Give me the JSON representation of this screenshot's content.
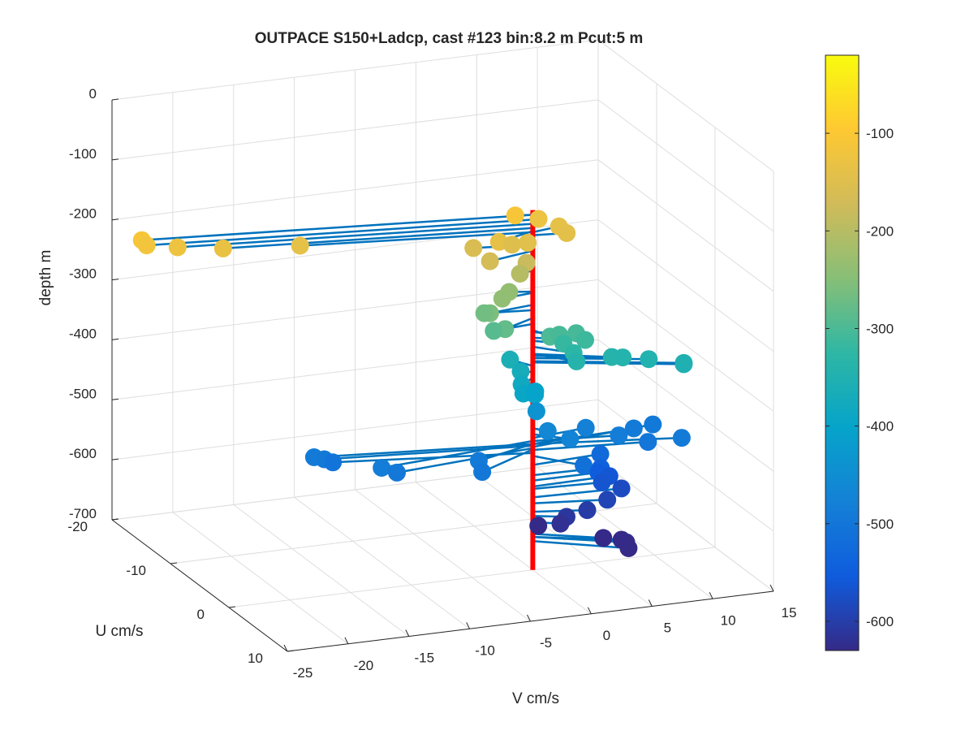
{
  "chart_data": {
    "type": "scatter",
    "title": "OUTPACE S150+Ladcp, cast #123 bin:8.2 m  Pcut:5 m",
    "zlabel": "depth m",
    "ulabel": "U cm/s",
    "vlabel": "V cm/s",
    "z_ticks": [
      "0",
      "-100",
      "-200",
      "-300",
      "-400",
      "-500",
      "-600",
      "-700"
    ],
    "u_ticks": [
      "-20",
      "-10",
      "0",
      "10"
    ],
    "v_ticks": [
      "-25",
      "-20",
      "-15",
      "-10",
      "-5",
      "0",
      "5",
      "10",
      "15"
    ],
    "colorbar_ticks": [
      "-100",
      "-200",
      "-300",
      "-400",
      "-500",
      "-600"
    ],
    "zlim": [
      -700,
      0
    ],
    "ulim": [
      -20,
      10
    ],
    "vlim": [
      -25,
      15
    ],
    "clim": [
      -630,
      -20
    ],
    "colormap": "parula",
    "grid": true,
    "axis_line_color": "#1f77b4",
    "series_color": "#0072BD",
    "profile_line_color": "#ff0000",
    "profile_depth_range": [
      -100,
      -700
    ],
    "points": [
      {
        "v": -30.0,
        "u": -4.5,
        "z": -108
      },
      {
        "v": -29.7,
        "u": -4.3,
        "z": -116
      },
      {
        "v": -27.3,
        "u": -4.0,
        "z": -123
      },
      {
        "v": -23.8,
        "u": -3.5,
        "z": -130
      },
      {
        "v": -17.7,
        "u": -3.0,
        "z": -137
      },
      {
        "v": -1.3,
        "u": -0.3,
        "z": -108
      },
      {
        "v": 1.1,
        "u": -1.3,
        "z": -127
      },
      {
        "v": -3.4,
        "u": 1.3,
        "z": -135
      },
      {
        "v": -0.9,
        "u": 1.0,
        "z": -145
      },
      {
        "v": -1.9,
        "u": 0.4,
        "z": -150
      },
      {
        "v": -4.5,
        "u": -0.8,
        "z": -158
      },
      {
        "v": -4.0,
        "u": 1.0,
        "z": -168
      },
      {
        "v": 2.4,
        "u": -0.5,
        "z": -137
      },
      {
        "v": 2.6,
        "u": 0.4,
        "z": -142
      },
      {
        "v": -0.9,
        "u": 0.8,
        "z": -180
      },
      {
        "v": -1.2,
        "u": 0.3,
        "z": -201
      },
      {
        "v": -1.7,
        "u": -0.5,
        "z": -236
      },
      {
        "v": -2.7,
        "u": 0.4,
        "z": -238
      },
      {
        "v": -3.8,
        "u": 0.6,
        "z": -258
      },
      {
        "v": -3.7,
        "u": -0.6,
        "z": -267
      },
      {
        "v": -3.0,
        "u": 1.5,
        "z": -280
      },
      {
        "v": -3.4,
        "u": 0.4,
        "z": -290
      },
      {
        "v": 0.6,
        "u": 1.7,
        "z": -300
      },
      {
        "v": 1.6,
        "u": 1.2,
        "z": -303
      },
      {
        "v": 3.0,
        "u": 1.2,
        "z": -304
      },
      {
        "v": 3.5,
        "u": 1.7,
        "z": -313
      },
      {
        "v": 1.9,
        "u": 1.3,
        "z": -318
      },
      {
        "v": 2.3,
        "u": 2.2,
        "z": -328
      },
      {
        "v": 2.4,
        "u": 2.5,
        "z": -340
      },
      {
        "v": 8.1,
        "u": 3.0,
        "z": -347
      },
      {
        "v": 5.3,
        "u": 2.5,
        "z": -340
      },
      {
        "v": 6.2,
        "u": 2.5,
        "z": -343
      },
      {
        "v": 10.5,
        "u": 4.0,
        "z": -354
      },
      {
        "v": 10.5,
        "u": 4.0,
        "z": -352
      },
      {
        "v": -1.0,
        "u": -1.8,
        "z": -360
      },
      {
        "v": -0.8,
        "u": -0.4,
        "z": -370
      },
      {
        "v": -1.4,
        "u": 1.0,
        "z": -380
      },
      {
        "v": -1.4,
        "u": 1.3,
        "z": -393
      },
      {
        "v": -0.3,
        "u": 1.0,
        "z": -400
      },
      {
        "v": 0.2,
        "u": 0.0,
        "z": -403
      },
      {
        "v": 0.4,
        "u": -0.2,
        "z": -438
      },
      {
        "v": 0.8,
        "u": 0.9,
        "z": -464
      },
      {
        "v": 2.2,
        "u": 1.8,
        "z": -474
      },
      {
        "v": -16.7,
        "u": -2.7,
        "z": -490
      },
      {
        "v": -16.0,
        "u": -2.4,
        "z": -493
      },
      {
        "v": -15.0,
        "u": -3.0,
        "z": -505
      },
      {
        "v": -13.2,
        "u": 1.6,
        "z": -485
      },
      {
        "v": -11.9,
        "u": 1.5,
        "z": -497
      },
      {
        "v": -5.4,
        "u": 2.0,
        "z": -490
      },
      {
        "v": -5.7,
        "u": 3.2,
        "z": -499
      },
      {
        "v": 4.7,
        "u": -0.7,
        "z": -480
      },
      {
        "v": 6.6,
        "u": 1.0,
        "z": -485
      },
      {
        "v": 8.6,
        "u": -0.6,
        "z": -490
      },
      {
        "v": 10.6,
        "u": -1.5,
        "z": -495
      },
      {
        "v": 11.1,
        "u": 2.4,
        "z": -490
      },
      {
        "v": 8.9,
        "u": 1.2,
        "z": -500
      },
      {
        "v": 2.7,
        "u": 3.1,
        "z": -510
      },
      {
        "v": 5.8,
        "u": -0.5,
        "z": -525
      },
      {
        "v": 5.5,
        "u": 0.2,
        "z": -542
      },
      {
        "v": 5.4,
        "u": 0.0,
        "z": -551
      },
      {
        "v": 6.4,
        "u": -0.2,
        "z": -561
      },
      {
        "v": 5.5,
        "u": 0.4,
        "z": -565
      },
      {
        "v": 7.1,
        "u": 0.4,
        "z": -579
      },
      {
        "v": 5.6,
        "u": 1.1,
        "z": -589
      },
      {
        "v": 4.0,
        "u": 1.0,
        "z": -603
      },
      {
        "v": 2.3,
        "u": 1.0,
        "z": -610
      },
      {
        "v": 1.8,
        "u": 1.0,
        "z": -620
      },
      {
        "v": 0.6,
        "u": -0.3,
        "z": -630
      },
      {
        "v": 4.6,
        "u": 2.5,
        "z": -640
      },
      {
        "v": 6.0,
        "u": 2.7,
        "z": -645
      },
      {
        "v": 6.1,
        "u": 3.3,
        "z": -645
      },
      {
        "v": 6.1,
        "u": 3.7,
        "z": -652
      }
    ]
  }
}
